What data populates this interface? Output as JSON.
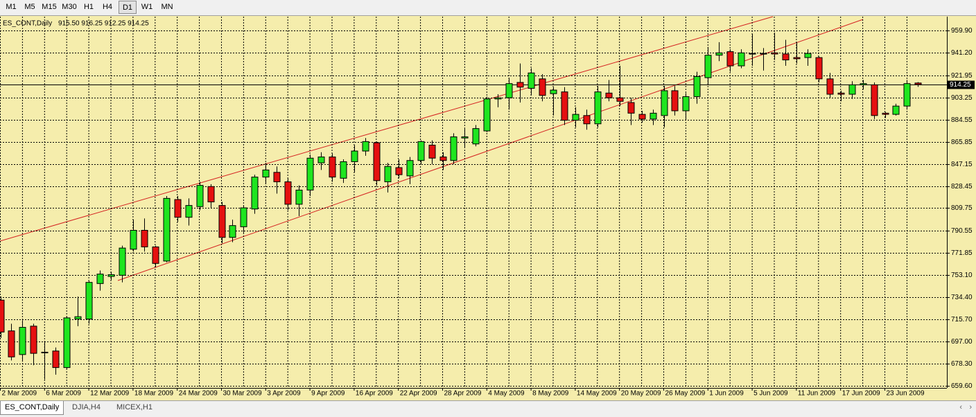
{
  "toolbar": {
    "timeframes": [
      "M1",
      "M5",
      "M15",
      "M30",
      "H1",
      "H4",
      "D1",
      "W1",
      "MN"
    ],
    "active": "D1"
  },
  "tabs": {
    "items": [
      "ES_CONT,Daily",
      "DJIA,H4",
      "MICEX,H1"
    ],
    "active": "ES_CONT,Daily"
  },
  "chart_data": {
    "type": "candlestick",
    "title": "ES_CONT,Daily",
    "ohlc_text": "915.50 916.25 912.25 914.25",
    "up_color": "#1fe51f",
    "down_color": "#e51010",
    "grid": true,
    "categories": [
      "2 Mar 2009",
      null,
      null,
      null,
      "6 Mar 2009",
      null,
      null,
      null,
      "12 Mar 2009",
      null,
      null,
      null,
      "18 Mar 2009",
      null,
      null,
      null,
      "24 Mar 2009",
      null,
      null,
      null,
      "30 Mar 2009",
      null,
      null,
      null,
      "3 Apr 2009",
      null,
      null,
      null,
      "9 Apr 2009",
      null,
      null,
      null,
      "16 Apr 2009",
      null,
      null,
      null,
      "22 Apr 2009",
      null,
      null,
      null,
      "28 Apr 2009",
      null,
      null,
      null,
      "4 May 2009",
      null,
      null,
      null,
      "8 May 2009",
      null,
      null,
      null,
      "14 May 2009",
      null,
      null,
      null,
      "20 May 2009",
      null,
      null,
      null,
      "26 May 2009",
      null,
      null,
      null,
      "1 Jun 2009",
      null,
      null,
      null,
      "5 Jun 2009",
      null,
      null,
      null,
      "11 Jun 2009",
      null,
      null,
      null,
      "17 Jun 2009",
      null,
      null,
      null,
      "23 Jun 2009",
      null,
      null,
      null
    ],
    "open": [
      732,
      706,
      686,
      710,
      688,
      689,
      675,
      716,
      716,
      746,
      752,
      753,
      775,
      791,
      777,
      765,
      817,
      802,
      811,
      828,
      812,
      785,
      794,
      809,
      836,
      840,
      832,
      813,
      825,
      848,
      853,
      835,
      849,
      858,
      865,
      832,
      844,
      837,
      850,
      863,
      853,
      850,
      869,
      864,
      875,
      902,
      903,
      916,
      911,
      919,
      906.5,
      908,
      884,
      888,
      881,
      907,
      903,
      899,
      889,
      885,
      888,
      909,
      892,
      904,
      920,
      939,
      942,
      930,
      940.5,
      940,
      941,
      940,
      937,
      937,
      937,
      919,
      907,
      906,
      914,
      914,
      890,
      889,
      896,
      915.5
    ],
    "high": [
      735,
      712,
      715,
      712,
      697,
      692,
      718,
      735,
      748,
      757,
      756,
      778,
      800,
      801,
      778,
      820,
      820,
      818,
      832,
      830,
      815,
      800,
      812,
      838,
      848,
      845,
      835,
      829,
      855,
      857,
      856,
      851,
      863,
      869,
      866,
      848,
      851,
      853,
      867,
      867,
      857,
      873,
      877,
      880,
      904,
      906,
      920,
      932,
      928,
      923,
      912,
      912,
      895,
      893,
      913,
      918,
      930,
      903,
      892,
      893,
      913,
      913,
      907,
      925,
      946,
      950,
      944,
      944,
      957,
      945,
      958,
      952,
      950,
      944,
      938,
      924,
      909,
      917,
      918,
      916,
      891,
      898,
      918,
      916.25
    ],
    "low": [
      700,
      681,
      680,
      677,
      665,
      669,
      674,
      710,
      712,
      740,
      749,
      747,
      773,
      773,
      760,
      764,
      798,
      795,
      808,
      810,
      780,
      781,
      789,
      805,
      830,
      822,
      808,
      803,
      820,
      842,
      832,
      831,
      840,
      854,
      829,
      823,
      835,
      830,
      847,
      847,
      842,
      847,
      861,
      862,
      874,
      895,
      893,
      899,
      905,
      900,
      888,
      880,
      878,
      876,
      878,
      900,
      896,
      880,
      882,
      880,
      878,
      888,
      884,
      898,
      914,
      934,
      925,
      928,
      930,
      926,
      935,
      930,
      932,
      930,
      916,
      903,
      900,
      902,
      910,
      885,
      886,
      888,
      893,
      912.25
    ],
    "close": [
      705,
      684,
      709,
      687,
      688,
      675,
      717,
      718,
      747,
      754,
      753.5,
      776,
      791,
      777,
      763,
      818,
      802,
      812,
      829,
      815,
      785,
      795,
      810,
      836,
      842,
      832,
      813,
      825,
      852,
      853,
      836,
      849,
      858,
      866,
      833,
      845,
      838,
      850,
      866,
      852,
      850,
      870,
      870,
      877,
      902,
      903,
      915,
      912,
      924,
      905,
      909.5,
      884,
      889,
      881,
      908,
      903,
      900,
      890,
      885,
      890,
      909,
      892,
      904,
      921,
      939,
      941,
      930,
      941,
      940,
      940.5,
      940,
      935,
      936,
      940.5,
      919,
      906,
      906,
      914,
      915,
      888,
      889,
      896,
      915,
      914.25
    ],
    "ylim": [
      657.8,
      971.6
    ],
    "yticks": [
      {
        "value": 959.9,
        "label": "959.90"
      },
      {
        "value": 941.2,
        "label": "941.20"
      },
      {
        "value": 921.95,
        "label": "921.95"
      },
      {
        "value": 903.25,
        "label": "903.25"
      },
      {
        "value": 884.55,
        "label": "884.55"
      },
      {
        "value": 865.85,
        "label": "865.85"
      },
      {
        "value": 847.15,
        "label": "847.15"
      },
      {
        "value": 828.45,
        "label": "828.45"
      },
      {
        "value": 809.75,
        "label": "809.75"
      },
      {
        "value": 790.55,
        "label": "790.55"
      },
      {
        "value": 771.85,
        "label": "771.85"
      },
      {
        "value": 753.1,
        "label": "753.10"
      },
      {
        "value": 734.4,
        "label": "734.40"
      },
      {
        "value": 715.7,
        "label": "715.70"
      },
      {
        "value": 697,
        "label": "697.00"
      },
      {
        "value": 678.3,
        "label": "678.30"
      },
      {
        "value": 659.6,
        "label": "659.60"
      }
    ],
    "price_line": {
      "value": 914.25,
      "label": "914.25"
    }
  }
}
